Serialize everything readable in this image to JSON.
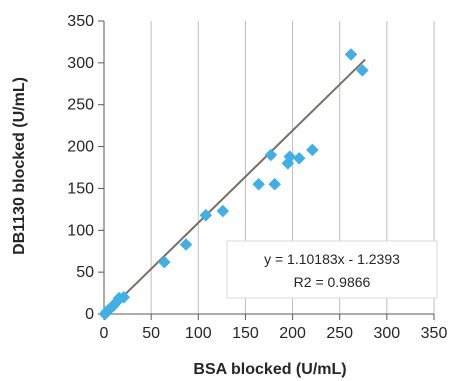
{
  "chart_data": {
    "type": "scatter",
    "title": "",
    "xlabel": "BSA blocked (U/mL)",
    "ylabel": "DB1130 blocked (U/mL)",
    "xlim": [
      0,
      350
    ],
    "ylim": [
      0,
      350
    ],
    "xticks": [
      0,
      50,
      100,
      150,
      200,
      250,
      300,
      350
    ],
    "yticks": [
      0,
      50,
      100,
      150,
      200,
      250,
      300,
      350
    ],
    "grid": "vertical",
    "legend": "none",
    "colors": {
      "points": "#3fb0e6",
      "trendline": "#7a6e66",
      "axis": "#595959",
      "grid": "#bfbfbf"
    },
    "series": [
      {
        "marker": "diamond",
        "points": [
          [
            1,
            0
          ],
          [
            3,
            3
          ],
          [
            5,
            5
          ],
          [
            7,
            7
          ],
          [
            10,
            10
          ],
          [
            13,
            14
          ],
          [
            16,
            19
          ],
          [
            21,
            20
          ],
          [
            64,
            62
          ],
          [
            87,
            83
          ],
          [
            108,
            118
          ],
          [
            126,
            123
          ],
          [
            164,
            155
          ],
          [
            177,
            190
          ],
          [
            181,
            155
          ],
          [
            195,
            180
          ],
          [
            197,
            188
          ],
          [
            207,
            186
          ],
          [
            221,
            196
          ],
          [
            262,
            310
          ],
          [
            274,
            291
          ]
        ]
      }
    ],
    "trendline": {
      "type": "linear",
      "slope": 1.10183,
      "intercept": -1.2393,
      "x_range": [
        0,
        277
      ]
    },
    "annotations": {
      "equation": "y = 1.10183x - 1.2393",
      "r_squared": "R2 = 0.9866"
    }
  }
}
